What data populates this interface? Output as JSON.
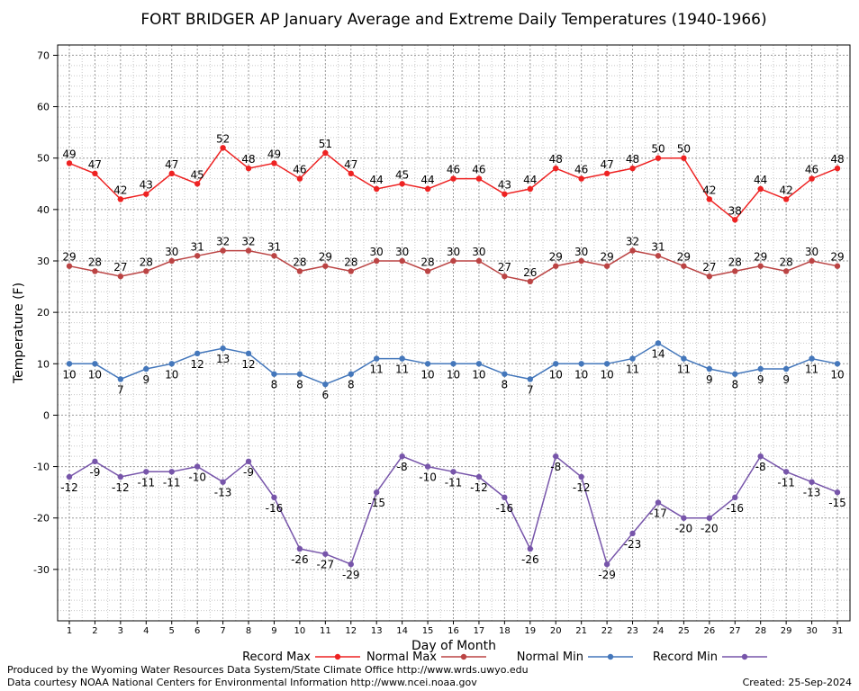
{
  "chart_data": {
    "type": "line",
    "title": "FORT BRIDGER AP January Average and Extreme Daily Temperatures (1940-1966)",
    "xlabel": "Day of Month",
    "ylabel": "Temperature (F)",
    "ylim": [
      -40,
      72
    ],
    "yticks": [
      70,
      60,
      50,
      40,
      30,
      20,
      10,
      0,
      -10,
      -20,
      -30
    ],
    "grid": true,
    "legend_position": "bottom",
    "x": [
      1,
      2,
      3,
      4,
      5,
      6,
      7,
      8,
      9,
      10,
      11,
      12,
      13,
      14,
      15,
      16,
      17,
      18,
      19,
      20,
      21,
      22,
      23,
      24,
      25,
      26,
      27,
      28,
      29,
      30,
      31
    ],
    "series": [
      {
        "name": "Record Max",
        "color": "#ee2222",
        "values": [
          49,
          47,
          42,
          43,
          47,
          45,
          52,
          48,
          49,
          46,
          51,
          47,
          44,
          45,
          44,
          46,
          46,
          43,
          44,
          48,
          46,
          47,
          48,
          50,
          50,
          42,
          38,
          44,
          42,
          46,
          48
        ]
      },
      {
        "name": "Normal Max",
        "color": "#bb4444",
        "values": [
          29,
          28,
          27,
          28,
          30,
          31,
          32,
          32,
          31,
          28,
          29,
          28,
          30,
          30,
          28,
          30,
          30,
          27,
          26,
          29,
          30,
          29,
          32,
          31,
          29,
          27,
          28,
          29,
          28,
          30,
          29
        ]
      },
      {
        "name": "Normal Min",
        "color": "#4477bb",
        "values": [
          10,
          10,
          7,
          9,
          10,
          12,
          13,
          12,
          8,
          8,
          6,
          8,
          11,
          11,
          10,
          10,
          10,
          8,
          7,
          10,
          10,
          10,
          11,
          14,
          11,
          9,
          8,
          9,
          9,
          11,
          10
        ]
      },
      {
        "name": "Record Min",
        "color": "#7755aa",
        "values": [
          -12,
          -9,
          -12,
          -11,
          -11,
          -10,
          -13,
          -9,
          -16,
          -26,
          -27,
          -29,
          -15,
          -8,
          -10,
          -11,
          -12,
          -16,
          -26,
          -8,
          -12,
          -29,
          -23,
          -17,
          -20,
          -20,
          -16,
          -8,
          -11,
          -13,
          -15
        ]
      }
    ]
  },
  "footer": {
    "produced_by": "Produced by the Wyoming Water Resources Data System/State Climate Office http://www.wrds.uwyo.edu",
    "courtesy": "Data courtesy NOAA National Centers for Environmental Information http://www.ncei.noaa.gov",
    "created": "Created: 25-Sep-2024"
  }
}
